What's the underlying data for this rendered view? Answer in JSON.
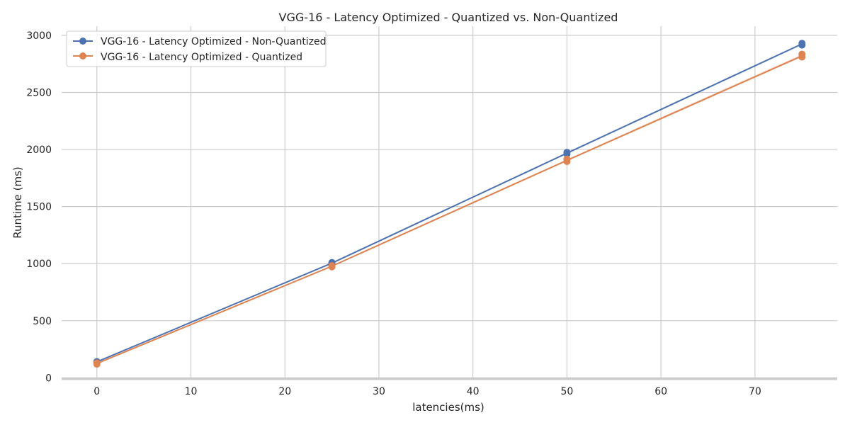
{
  "chart_data": {
    "type": "line",
    "title": "VGG-16 - Latency Optimized - Quantized vs. Non-Quantized",
    "xlabel": "latencies(ms)",
    "ylabel": "Runtime (ms)",
    "xlim": [
      -3.75,
      78.75
    ],
    "ylim": [
      -10,
      3080
    ],
    "xticks": [
      0,
      10,
      20,
      30,
      40,
      50,
      60,
      70
    ],
    "yticks": [
      0,
      500,
      1000,
      1500,
      2000,
      2500,
      3000
    ],
    "grid": true,
    "legend_position": "top-left",
    "x": [
      0,
      25,
      50,
      75
    ],
    "series": [
      {
        "name": "VGG-16 - Latency Optimized - Non-Quantized",
        "color": "#4c72b0",
        "values": [
          140,
          1005,
          1968,
          2925
        ],
        "points": [
          [
            0,
            135
          ],
          [
            0,
            142
          ],
          [
            25,
            1000
          ],
          [
            25,
            1010
          ],
          [
            50,
            1960
          ],
          [
            50,
            1975
          ],
          [
            75,
            2915
          ],
          [
            75,
            2930
          ]
        ]
      },
      {
        "name": "VGG-16 - Latency Optimized - Quantized",
        "color": "#dd8452",
        "values": [
          125,
          978,
          1905,
          2820
        ],
        "points": [
          [
            0,
            120
          ],
          [
            0,
            130
          ],
          [
            25,
            972
          ],
          [
            25,
            982
          ],
          [
            50,
            1895
          ],
          [
            50,
            1915
          ],
          [
            75,
            2810
          ],
          [
            75,
            2835
          ]
        ]
      }
    ]
  }
}
